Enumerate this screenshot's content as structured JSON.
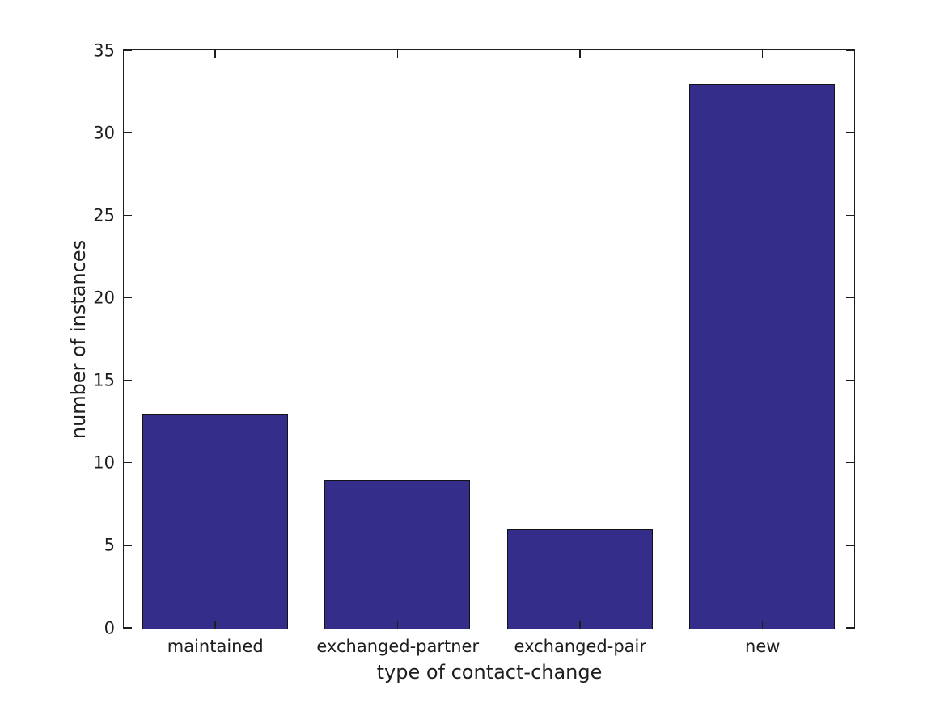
{
  "chart_data": {
    "type": "bar",
    "categories": [
      "maintained",
      "exchanged-partner",
      "exchanged-pair",
      "new"
    ],
    "values": [
      13,
      9,
      6,
      33
    ],
    "title": "",
    "xlabel": "type of contact-change",
    "ylabel": "number of instances",
    "ylim": [
      0,
      35
    ],
    "yticks": [
      0,
      5,
      10,
      15,
      20,
      25,
      30,
      35
    ],
    "bar_width_fraction": 0.8,
    "grid": false,
    "legend_position": "none",
    "tick_direction": "in",
    "box": true,
    "colors": {
      "bar_fill": "#342d8a",
      "bar_edge": "#141414",
      "axis": "#1e1e1e",
      "text": "#1e1e1e",
      "background": "#ffffff"
    }
  }
}
